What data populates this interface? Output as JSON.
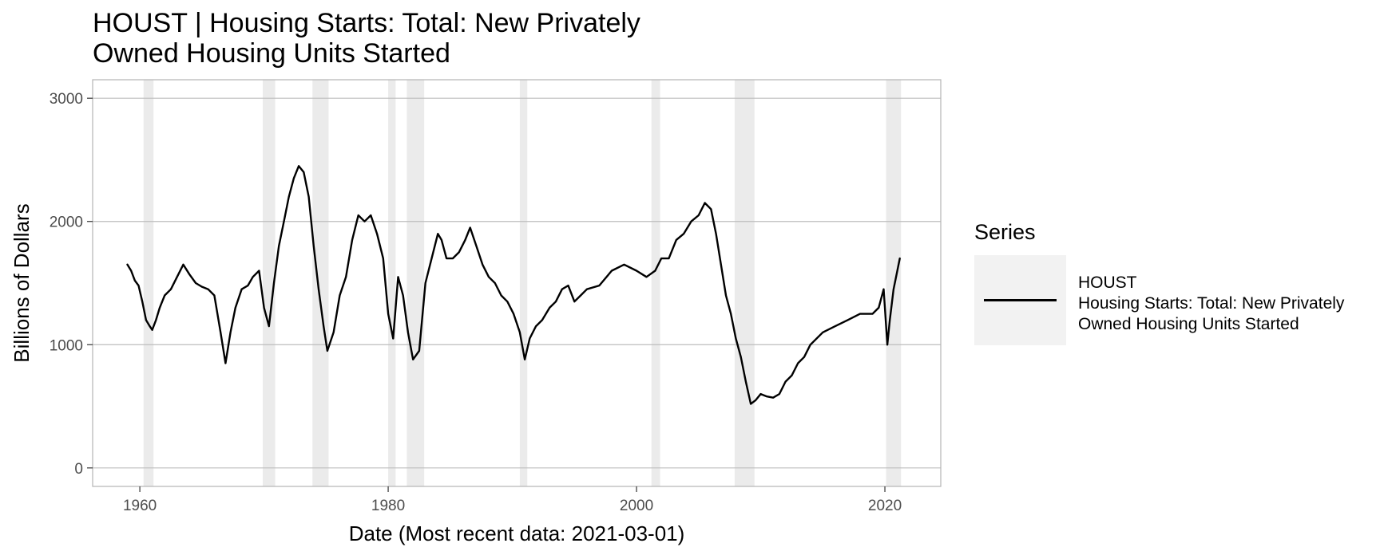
{
  "chart_data": {
    "type": "line",
    "title_lines": [
      "HOUST | Housing Starts: Total: New Privately",
      "Owned Housing Units Started"
    ],
    "xlabel": "Date (Most recent data: 2021-03-01)",
    "ylabel": "Billions of Dollars",
    "xlim": [
      1956.2,
      2024.5
    ],
    "ylim": [
      -150,
      3150
    ],
    "x_ticks": [
      1960,
      1980,
      2000,
      2020
    ],
    "y_ticks": [
      0,
      1000,
      2000,
      3000
    ],
    "grid": "horizontal",
    "legend": {
      "title": "Series",
      "position": "right",
      "entries": [
        {
          "lines": [
            "HOUST",
            "Housing Starts: Total: New Privately",
            "Owned Housing Units Started"
          ]
        }
      ]
    },
    "recessions": [
      [
        1960.3,
        1961.1
      ],
      [
        1969.9,
        1970.9
      ],
      [
        1973.9,
        1975.2
      ],
      [
        1980.0,
        1980.6
      ],
      [
        1981.5,
        1982.9
      ],
      [
        1990.6,
        1991.2
      ],
      [
        2001.2,
        2001.9
      ],
      [
        2007.9,
        2009.5
      ],
      [
        2020.1,
        2021.3
      ]
    ],
    "series": [
      {
        "name": "HOUST",
        "color": "#000000",
        "x": [
          1959.0,
          1959.3,
          1959.6,
          1959.9,
          1960.2,
          1960.5,
          1960.8,
          1961.0,
          1961.3,
          1961.6,
          1962.0,
          1962.5,
          1963.0,
          1963.5,
          1964.0,
          1964.5,
          1965.0,
          1965.5,
          1966.0,
          1966.5,
          1966.9,
          1967.3,
          1967.7,
          1968.2,
          1968.7,
          1969.1,
          1969.6,
          1970.0,
          1970.4,
          1970.8,
          1971.2,
          1971.6,
          1972.0,
          1972.4,
          1972.8,
          1973.2,
          1973.6,
          1974.0,
          1974.4,
          1974.8,
          1975.1,
          1975.6,
          1976.1,
          1976.6,
          1977.1,
          1977.6,
          1978.1,
          1978.6,
          1979.1,
          1979.6,
          1980.0,
          1980.4,
          1980.8,
          1981.2,
          1981.6,
          1982.0,
          1982.5,
          1983.0,
          1983.5,
          1984.0,
          1984.3,
          1984.7,
          1985.2,
          1985.7,
          1986.2,
          1986.6,
          1987.1,
          1987.6,
          1988.1,
          1988.6,
          1989.1,
          1989.6,
          1990.1,
          1990.6,
          1991.0,
          1991.4,
          1991.9,
          1992.4,
          1993.0,
          1993.5,
          1994.0,
          1994.5,
          1995.0,
          1995.5,
          1996.0,
          1997.0,
          1998.0,
          1999.0,
          2000.0,
          2000.8,
          2001.5,
          2002.0,
          2002.6,
          2003.2,
          2003.8,
          2004.4,
          2005.0,
          2005.5,
          2006.0,
          2006.4,
          2006.8,
          2007.2,
          2007.6,
          2008.0,
          2008.4,
          2008.8,
          2009.2,
          2009.6,
          2010.0,
          2010.5,
          2011.0,
          2011.5,
          2012.0,
          2012.5,
          2013.0,
          2013.5,
          2014.0,
          2015.0,
          2016.0,
          2017.0,
          2018.0,
          2019.0,
          2019.5,
          2019.9,
          2020.2,
          2020.4,
          2020.7,
          2021.0,
          2021.2
        ],
        "values": [
          1650,
          1600,
          1520,
          1480,
          1350,
          1200,
          1150,
          1120,
          1200,
          1300,
          1400,
          1450,
          1550,
          1650,
          1570,
          1500,
          1470,
          1450,
          1400,
          1100,
          850,
          1100,
          1300,
          1450,
          1480,
          1550,
          1600,
          1300,
          1150,
          1500,
          1800,
          2000,
          2200,
          2350,
          2450,
          2400,
          2200,
          1800,
          1450,
          1150,
          950,
          1100,
          1400,
          1550,
          1850,
          2050,
          2000,
          2050,
          1900,
          1700,
          1250,
          1050,
          1550,
          1400,
          1100,
          880,
          950,
          1500,
          1700,
          1900,
          1850,
          1700,
          1700,
          1750,
          1850,
          1950,
          1800,
          1650,
          1550,
          1500,
          1400,
          1350,
          1250,
          1100,
          880,
          1050,
          1150,
          1200,
          1300,
          1350,
          1450,
          1480,
          1350,
          1400,
          1450,
          1480,
          1600,
          1650,
          1600,
          1550,
          1600,
          1700,
          1700,
          1850,
          1900,
          2000,
          2050,
          2150,
          2100,
          1900,
          1650,
          1400,
          1250,
          1050,
          900,
          700,
          520,
          550,
          600,
          580,
          570,
          600,
          700,
          750,
          850,
          900,
          1000,
          1100,
          1150,
          1200,
          1250,
          1250,
          1300,
          1450,
          1000,
          1200,
          1450,
          1600,
          1700
        ]
      }
    ]
  }
}
